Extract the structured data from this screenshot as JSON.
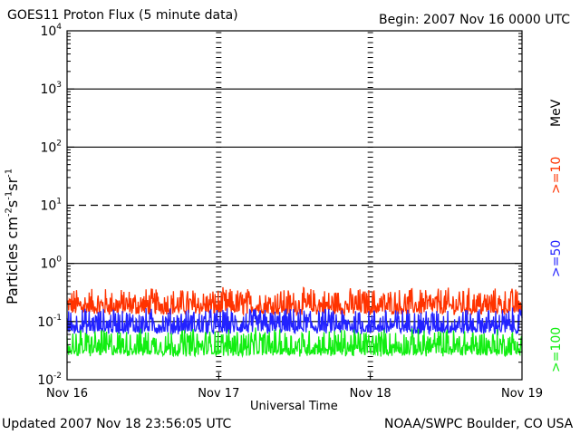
{
  "header": {
    "title": "GOES11 Proton Flux (5 minute data)",
    "begin": "Begin: 2007 Nov 16 0000 UTC"
  },
  "footer": {
    "updated": "Updated 2007 Nov 18 23:56:05 UTC",
    "source": "NOAA/SWPC Boulder, CO USA"
  },
  "legend": {
    "unit": "MeV",
    "items": [
      {
        "label": ">=10",
        "color": "#ff3300"
      },
      {
        "label": ">=50",
        "color": "#2222ff"
      },
      {
        "label": ">=100",
        "color": "#11ee11"
      }
    ]
  },
  "chart_data": {
    "type": "line",
    "title": "GOES11 Proton Flux (5 minute data)",
    "xlabel": "Universal Time",
    "ylabel": "Particles cm-2s-1sr-1",
    "yscale": "log",
    "ylim": [
      0.01,
      10000
    ],
    "ytick_labels": [
      {
        "base": "10",
        "exp": "-2",
        "value": 0.01
      },
      {
        "base": "10",
        "exp": "-1",
        "value": 0.1
      },
      {
        "base": "10",
        "exp": "0",
        "value": 1
      },
      {
        "base": "10",
        "exp": "1",
        "value": 10
      },
      {
        "base": "10",
        "exp": "2",
        "value": 100
      },
      {
        "base": "10",
        "exp": "3",
        "value": 1000
      },
      {
        "base": "10",
        "exp": "4",
        "value": 10000
      }
    ],
    "xlim_days": [
      0,
      3
    ],
    "x_ticks": [
      {
        "label": "Nov 16",
        "day": 0
      },
      {
        "label": "Nov 17",
        "day": 1
      },
      {
        "label": "Nov 18",
        "day": 2
      },
      {
        "label": "Nov 19",
        "day": 3
      }
    ],
    "reference_lines": [
      {
        "value": 10,
        "style": "dashed"
      },
      {
        "value": 1,
        "style": "solid"
      },
      {
        "value": 100,
        "style": "solid"
      },
      {
        "value": 1000,
        "style": "solid"
      },
      {
        "value": 0.1,
        "style": "solid"
      }
    ],
    "series": [
      {
        "name": ">=10 MeV",
        "color": "#ff3300",
        "typical_range": [
          0.13,
          0.4
        ],
        "median": 0.2
      },
      {
        "name": ">=50 MeV",
        "color": "#2222ff",
        "typical_range": [
          0.06,
          0.18
        ],
        "median": 0.1
      },
      {
        "name": ">=100 MeV",
        "color": "#11ee11",
        "typical_range": [
          0.025,
          0.08
        ],
        "median": 0.045
      }
    ]
  }
}
